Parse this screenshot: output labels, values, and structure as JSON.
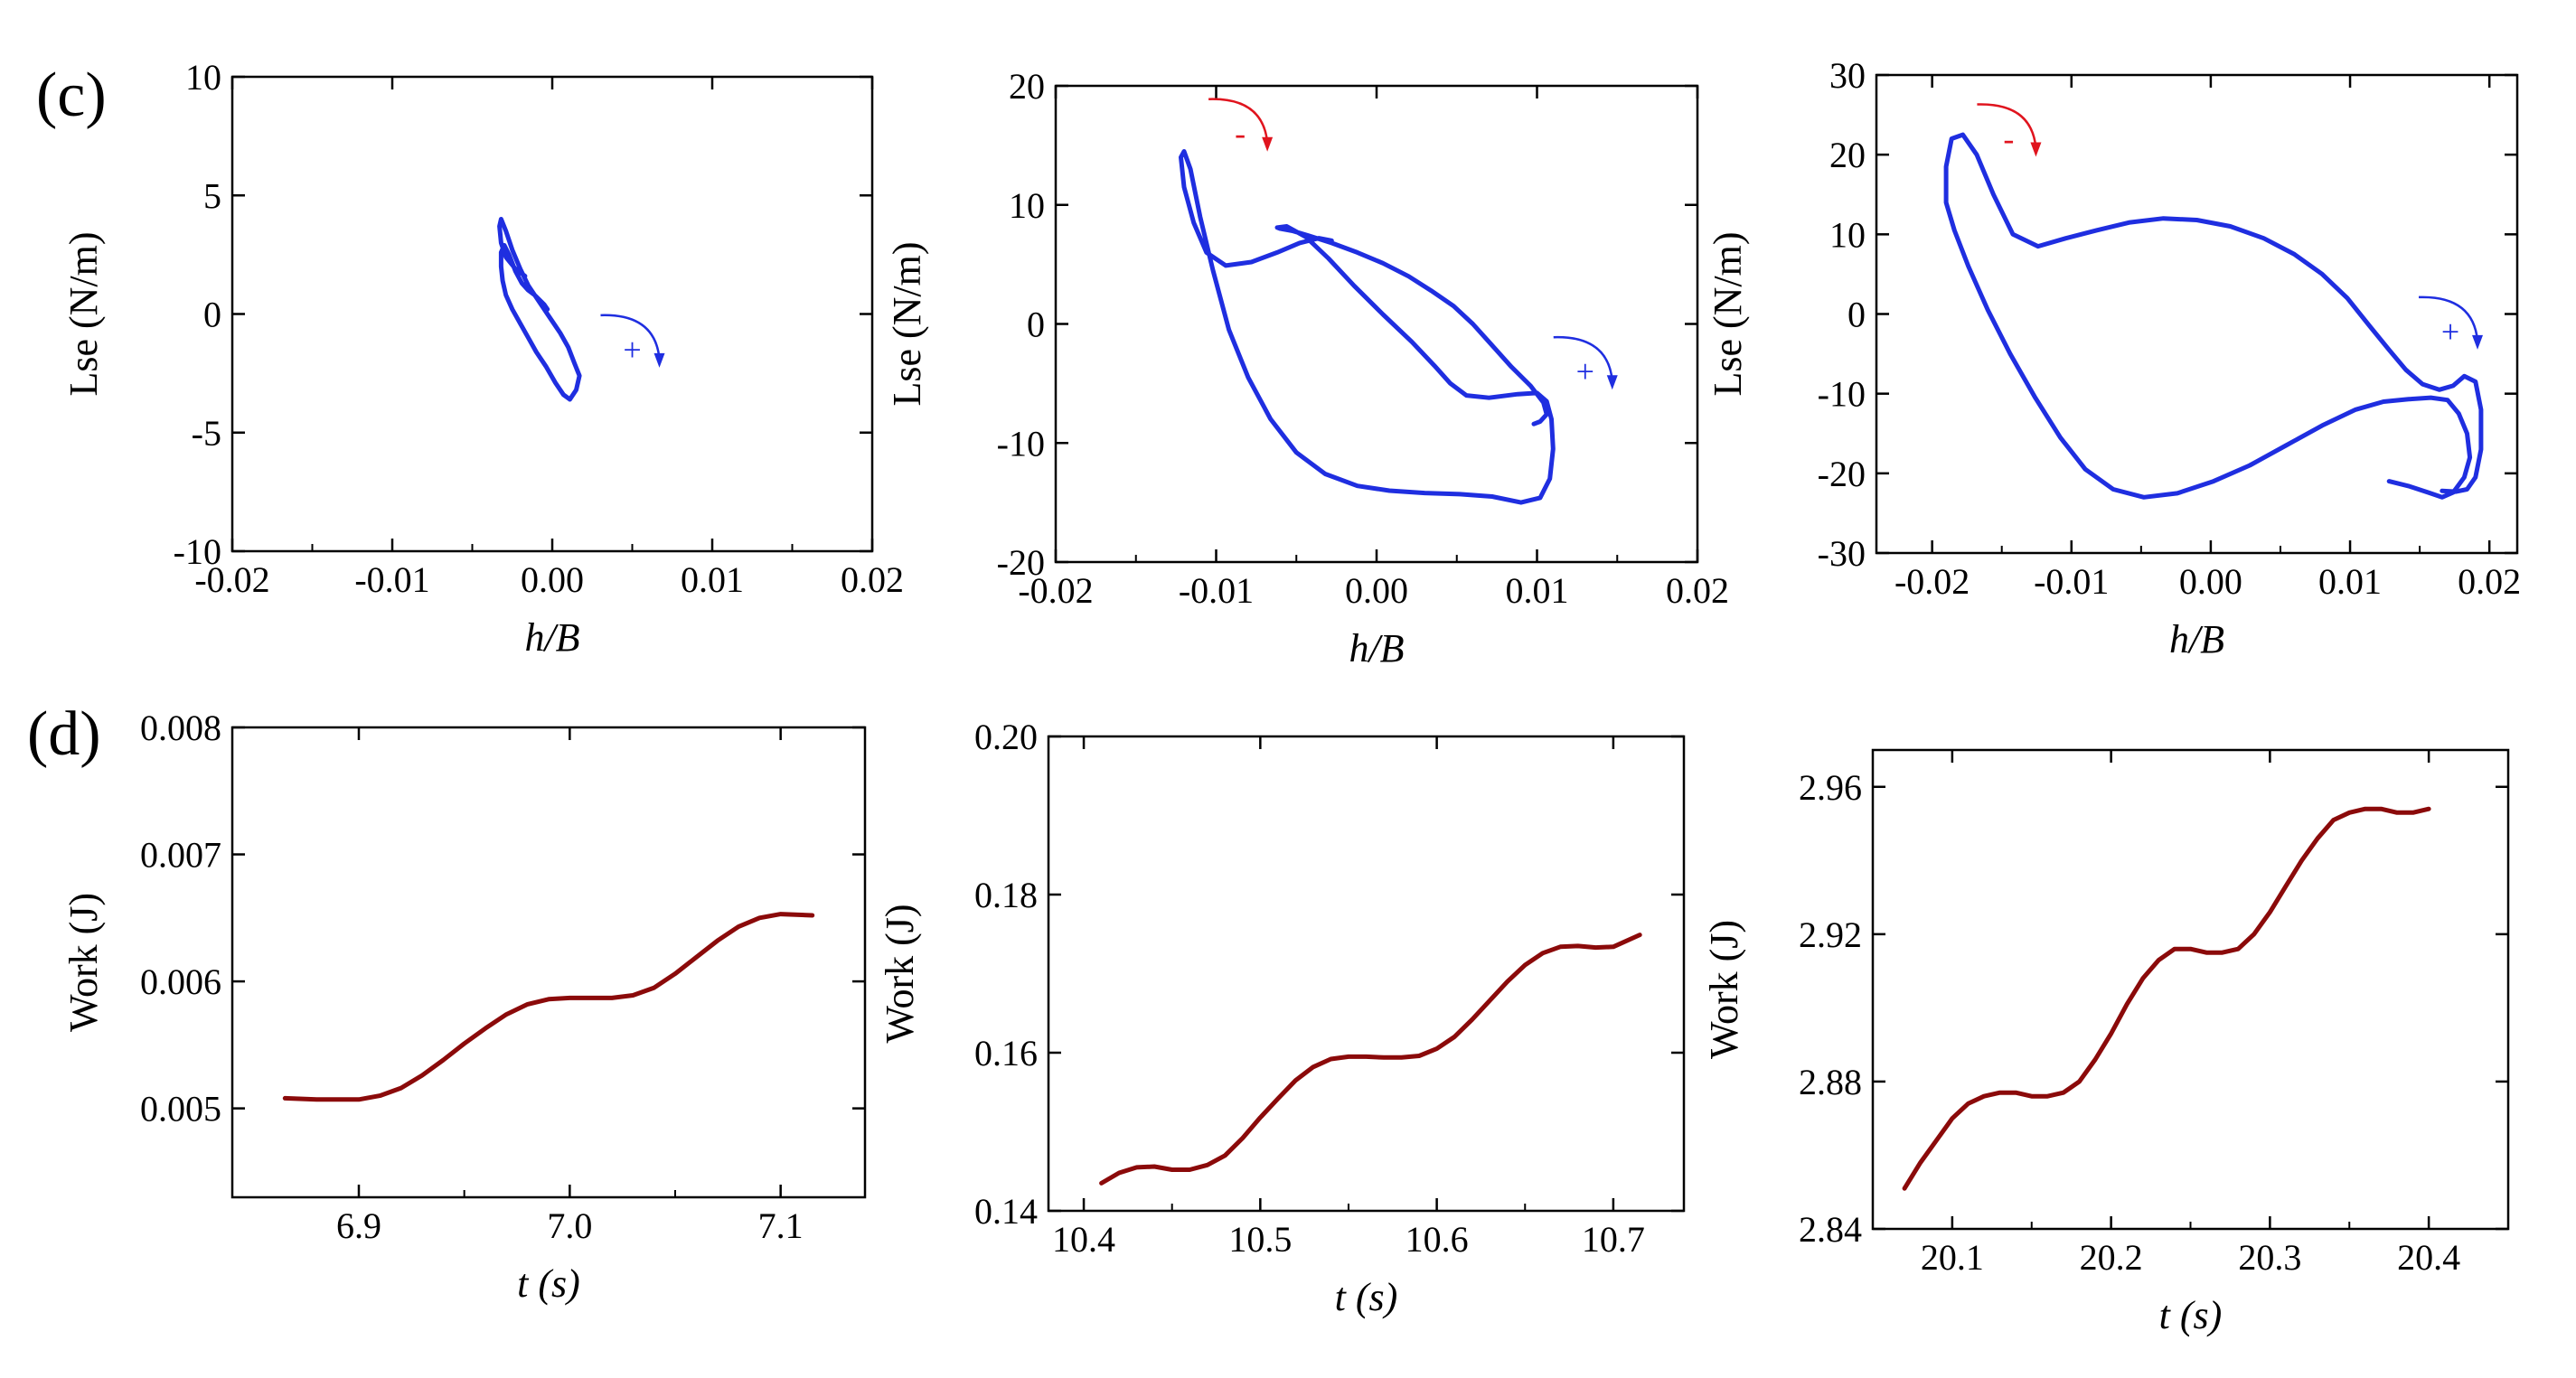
{
  "figure": {
    "panel_labels": [
      "(c)",
      "(d)"
    ],
    "markers": {
      "plus": "+",
      "minus": "-"
    }
  },
  "colors": {
    "loop": "#1f2ee0",
    "work": "#8b0a0a",
    "minus_arrow": "#e0141e",
    "axis": "#000000"
  },
  "chart_data": [
    {
      "type": "line",
      "panel": "(c)",
      "xlabel": "h/B",
      "ylabel": "Lse (N/m)",
      "xlim": [
        -0.02,
        0.02
      ],
      "ylim": [
        -10,
        10
      ],
      "xticks": [
        -0.02,
        -0.01,
        0.0,
        0.01,
        0.02
      ],
      "xtick_labels": [
        "-0.02",
        "-0.01",
        "0.00",
        "0.01",
        "0.02"
      ],
      "yticks": [
        -10,
        -5,
        0,
        5,
        10
      ],
      "ytick_labels": [
        "-10",
        "-5",
        "0",
        "5",
        "10"
      ],
      "markers": [
        {
          "label": "+",
          "x": 0.005,
          "y": -1.5
        }
      ],
      "series": [
        {
          "name": "loop",
          "x": [
            -0.0017,
            -0.0023,
            -0.0029,
            -0.0032,
            -0.0033,
            -0.0032,
            -0.0029,
            -0.0025,
            -0.002,
            -0.0015,
            -0.0008,
            -0.0001,
            0.0005,
            0.001,
            0.0014,
            0.0017,
            0.0015,
            0.0011,
            0.0007,
            0.0002,
            -0.0004,
            -0.001,
            -0.0015,
            -0.002,
            -0.0025,
            -0.0029,
            -0.0031,
            -0.0032,
            -0.0032,
            -0.003,
            -0.0027,
            -0.0023,
            -0.0019,
            -0.0015,
            -0.0011,
            -0.0008,
            -0.0005,
            -0.0003
          ],
          "y": [
            1.6,
            1.9,
            2.4,
            3.0,
            3.7,
            4.0,
            3.5,
            2.7,
            1.9,
            1.2,
            0.5,
            -0.2,
            -0.8,
            -1.4,
            -2.1,
            -2.6,
            -3.2,
            -3.6,
            -3.4,
            -2.9,
            -2.2,
            -1.6,
            -1.0,
            -0.4,
            0.2,
            0.8,
            1.4,
            2.0,
            2.6,
            2.9,
            2.5,
            1.8,
            1.3,
            1.0,
            0.8,
            0.6,
            0.4,
            0.2
          ]
        }
      ]
    },
    {
      "type": "line",
      "panel": "(c)",
      "xlabel": "h/B",
      "ylabel": "Lse (N/m)",
      "xlim": [
        -0.02,
        0.02
      ],
      "ylim": [
        -20,
        20
      ],
      "xticks": [
        -0.02,
        -0.01,
        0.0,
        0.01,
        0.02
      ],
      "xtick_labels": [
        "-0.02",
        "-0.01",
        "0.00",
        "0.01",
        "0.02"
      ],
      "yticks": [
        -20,
        -10,
        0,
        10,
        20
      ],
      "ytick_labels": [
        "-20",
        "-10",
        "0",
        "10",
        "20"
      ],
      "markers": [
        {
          "label": "+",
          "x": 0.013,
          "y": -4
        },
        {
          "label": "-",
          "x": -0.0085,
          "y": 16
        }
      ],
      "series": [
        {
          "name": "loop",
          "x": [
            -0.0028,
            -0.0036,
            -0.0048,
            -0.0062,
            -0.0078,
            -0.0094,
            -0.0106,
            -0.0114,
            -0.012,
            -0.0122,
            -0.012,
            -0.0116,
            -0.011,
            -0.0102,
            -0.0092,
            -0.008,
            -0.0066,
            -0.005,
            -0.0032,
            -0.0012,
            0.0008,
            0.003,
            0.0052,
            0.0072,
            0.009,
            0.0102,
            0.0108,
            0.011,
            0.0109,
            0.0106,
            0.01,
            0.0088,
            0.007,
            0.0056,
            0.0046,
            0.0036,
            0.0022,
            0.0004,
            -0.0014,
            -0.003,
            -0.0044,
            -0.0056,
            -0.0062,
            -0.006,
            -0.0052,
            -0.0042,
            -0.0028,
            -0.0012,
            0.0004,
            0.002,
            0.0034,
            0.0048,
            0.006,
            0.0072,
            0.0084,
            0.0096,
            0.0104,
            0.0106,
            0.0102,
            0.0098
          ],
          "y": [
            7.0,
            7.2,
            6.8,
            6.0,
            5.2,
            4.9,
            6.0,
            8.5,
            11.5,
            14.0,
            14.5,
            13.0,
            9.0,
            4.5,
            -0.5,
            -4.5,
            -8.0,
            -10.8,
            -12.6,
            -13.6,
            -14.0,
            -14.2,
            -14.3,
            -14.5,
            -15.0,
            -14.6,
            -13.0,
            -10.5,
            -8.0,
            -6.5,
            -5.8,
            -5.9,
            -6.2,
            -6.0,
            -5.0,
            -3.5,
            -1.5,
            0.8,
            3.2,
            5.5,
            7.3,
            8.2,
            8.1,
            8.0,
            7.8,
            7.4,
            6.8,
            6.0,
            5.1,
            4.0,
            2.8,
            1.5,
            0.0,
            -1.8,
            -3.6,
            -5.2,
            -6.6,
            -7.6,
            -8.2,
            -8.4
          ]
        }
      ]
    },
    {
      "type": "line",
      "panel": "(c)",
      "xlabel": "h/B",
      "ylabel": "Lse (N/m)",
      "xlim": [
        -0.024,
        0.022
      ],
      "ylim": [
        -30,
        30
      ],
      "xticks": [
        -0.02,
        -0.01,
        0.0,
        0.01,
        0.02
      ],
      "xtick_labels": [
        "-0.02",
        "-0.01",
        "0.00",
        "0.01",
        "0.02"
      ],
      "yticks": [
        -30,
        -20,
        -10,
        0,
        10,
        20,
        30
      ],
      "ytick_labels": [
        "-30",
        "-20",
        "-10",
        "0",
        "10",
        "20",
        "30"
      ],
      "markers": [
        {
          "label": "+",
          "x": 0.0172,
          "y": -2.2
        },
        {
          "label": "-",
          "x": -0.0145,
          "y": 22
        }
      ],
      "series": [
        {
          "name": "loop",
          "x": [
            0.0128,
            0.0142,
            0.0156,
            0.0166,
            0.0174,
            0.0182,
            0.0186,
            0.0184,
            0.0178,
            0.017,
            0.0158,
            0.0142,
            0.0124,
            0.0104,
            0.008,
            0.0054,
            0.0028,
            0.0002,
            -0.0024,
            -0.0048,
            -0.007,
            -0.009,
            -0.0108,
            -0.0126,
            -0.0144,
            -0.016,
            -0.0174,
            -0.0184,
            -0.019,
            -0.019,
            -0.0186,
            -0.0178,
            -0.0168,
            -0.0156,
            -0.0142,
            -0.0124,
            -0.0104,
            -0.0082,
            -0.0058,
            -0.0034,
            -0.001,
            0.0014,
            0.0038,
            0.006,
            0.008,
            0.0098,
            0.0114,
            0.0128,
            0.014,
            0.0152,
            0.0164,
            0.0174,
            0.0182,
            0.019,
            0.0194,
            0.0194,
            0.019,
            0.0184,
            0.0176,
            0.0166
          ],
          "y": [
            -21.0,
            -21.6,
            -22.4,
            -23.0,
            -22.4,
            -20.5,
            -18.0,
            -15.0,
            -12.5,
            -10.8,
            -10.5,
            -10.7,
            -11.0,
            -12.0,
            -14.0,
            -16.5,
            -19.0,
            -21.0,
            -22.5,
            -23.0,
            -22.0,
            -19.5,
            -15.5,
            -10.5,
            -5.0,
            0.5,
            6.0,
            10.5,
            14.0,
            18.5,
            22.0,
            22.5,
            20.0,
            15.0,
            10.0,
            8.5,
            9.5,
            10.5,
            11.5,
            12.0,
            11.8,
            11.0,
            9.5,
            7.5,
            5.0,
            2.0,
            -1.5,
            -4.5,
            -7.0,
            -8.8,
            -9.5,
            -9.0,
            -7.8,
            -8.5,
            -12.0,
            -17.0,
            -20.5,
            -22.0,
            -22.3,
            -22.2
          ]
        }
      ]
    },
    {
      "type": "line",
      "panel": "(d)",
      "xlabel": "t (s)",
      "ylabel": "Work (J)",
      "xlim": [
        6.84,
        7.14
      ],
      "ylim": [
        0.0043,
        0.008
      ],
      "xticks": [
        6.9,
        7.0,
        7.1
      ],
      "xtick_labels": [
        "6.9",
        "7.0",
        "7.1"
      ],
      "yticks": [
        0.005,
        0.006,
        0.007,
        0.008
      ],
      "ytick_labels": [
        "0.005",
        "0.006",
        "0.007",
        "0.008"
      ],
      "series": [
        {
          "name": "work",
          "x": [
            6.865,
            6.88,
            6.89,
            6.9,
            6.91,
            6.92,
            6.93,
            6.94,
            6.95,
            6.96,
            6.97,
            6.98,
            6.99,
            7.0,
            7.01,
            7.02,
            7.03,
            7.04,
            7.05,
            7.06,
            7.07,
            7.08,
            7.09,
            7.1,
            7.115
          ],
          "y": [
            0.00508,
            0.00507,
            0.00507,
            0.00507,
            0.0051,
            0.00516,
            0.00526,
            0.00538,
            0.00551,
            0.00563,
            0.00574,
            0.00582,
            0.00586,
            0.00587,
            0.00587,
            0.00587,
            0.00589,
            0.00595,
            0.00606,
            0.00619,
            0.00632,
            0.00643,
            0.0065,
            0.00653,
            0.00652
          ]
        }
      ]
    },
    {
      "type": "line",
      "panel": "(d)",
      "xlabel": "t (s)",
      "ylabel": "Work (J)",
      "xlim": [
        10.38,
        10.74
      ],
      "ylim": [
        0.14,
        0.2
      ],
      "xticks": [
        10.4,
        10.5,
        10.6,
        10.7
      ],
      "xtick_labels": [
        "10.4",
        "10.5",
        "10.6",
        "10.7"
      ],
      "yticks": [
        0.14,
        0.16,
        0.18,
        0.2
      ],
      "ytick_labels": [
        "0.14",
        "0.16",
        "0.18",
        "0.20"
      ],
      "series": [
        {
          "name": "work",
          "x": [
            10.41,
            10.42,
            10.43,
            10.44,
            10.45,
            10.46,
            10.47,
            10.48,
            10.49,
            10.5,
            10.51,
            10.52,
            10.53,
            10.54,
            10.55,
            10.56,
            10.57,
            10.58,
            10.59,
            10.6,
            10.61,
            10.62,
            10.63,
            10.64,
            10.65,
            10.66,
            10.67,
            10.68,
            10.69,
            10.7,
            10.715
          ],
          "y": [
            0.1435,
            0.1448,
            0.1455,
            0.1456,
            0.1452,
            0.1452,
            0.1458,
            0.147,
            0.1492,
            0.1518,
            0.1542,
            0.1565,
            0.1582,
            0.1592,
            0.1595,
            0.1595,
            0.1594,
            0.1594,
            0.1596,
            0.1605,
            0.162,
            0.1642,
            0.1666,
            0.169,
            0.1711,
            0.1726,
            0.1734,
            0.1735,
            0.1733,
            0.1734,
            0.1749
          ]
        }
      ]
    },
    {
      "type": "line",
      "panel": "(d)",
      "xlabel": "t (s)",
      "ylabel": "Work (J)",
      "xlim": [
        20.05,
        20.45
      ],
      "ylim": [
        2.84,
        2.97
      ],
      "xticks": [
        20.1,
        20.2,
        20.3,
        20.4
      ],
      "xtick_labels": [
        "20.1",
        "20.2",
        "20.3",
        "20.4"
      ],
      "yticks": [
        2.84,
        2.88,
        2.92,
        2.96
      ],
      "ytick_labels": [
        "2.84",
        "2.88",
        "2.92",
        "2.96"
      ],
      "series": [
        {
          "name": "work",
          "x": [
            20.07,
            20.08,
            20.09,
            20.1,
            20.11,
            20.12,
            20.13,
            20.14,
            20.15,
            20.16,
            20.17,
            20.18,
            20.19,
            20.2,
            20.21,
            20.22,
            20.23,
            20.24,
            20.25,
            20.26,
            20.27,
            20.28,
            20.29,
            20.3,
            20.31,
            20.32,
            20.33,
            20.34,
            20.35,
            20.36,
            20.37,
            20.38,
            20.39,
            20.4
          ],
          "y": [
            2.851,
            2.858,
            2.864,
            2.87,
            2.874,
            2.876,
            2.877,
            2.877,
            2.876,
            2.876,
            2.877,
            2.88,
            2.886,
            2.893,
            2.901,
            2.908,
            2.913,
            2.916,
            2.916,
            2.915,
            2.915,
            2.916,
            2.92,
            2.926,
            2.933,
            2.94,
            2.946,
            2.951,
            2.953,
            2.954,
            2.954,
            2.953,
            2.953,
            2.954
          ]
        }
      ]
    }
  ]
}
